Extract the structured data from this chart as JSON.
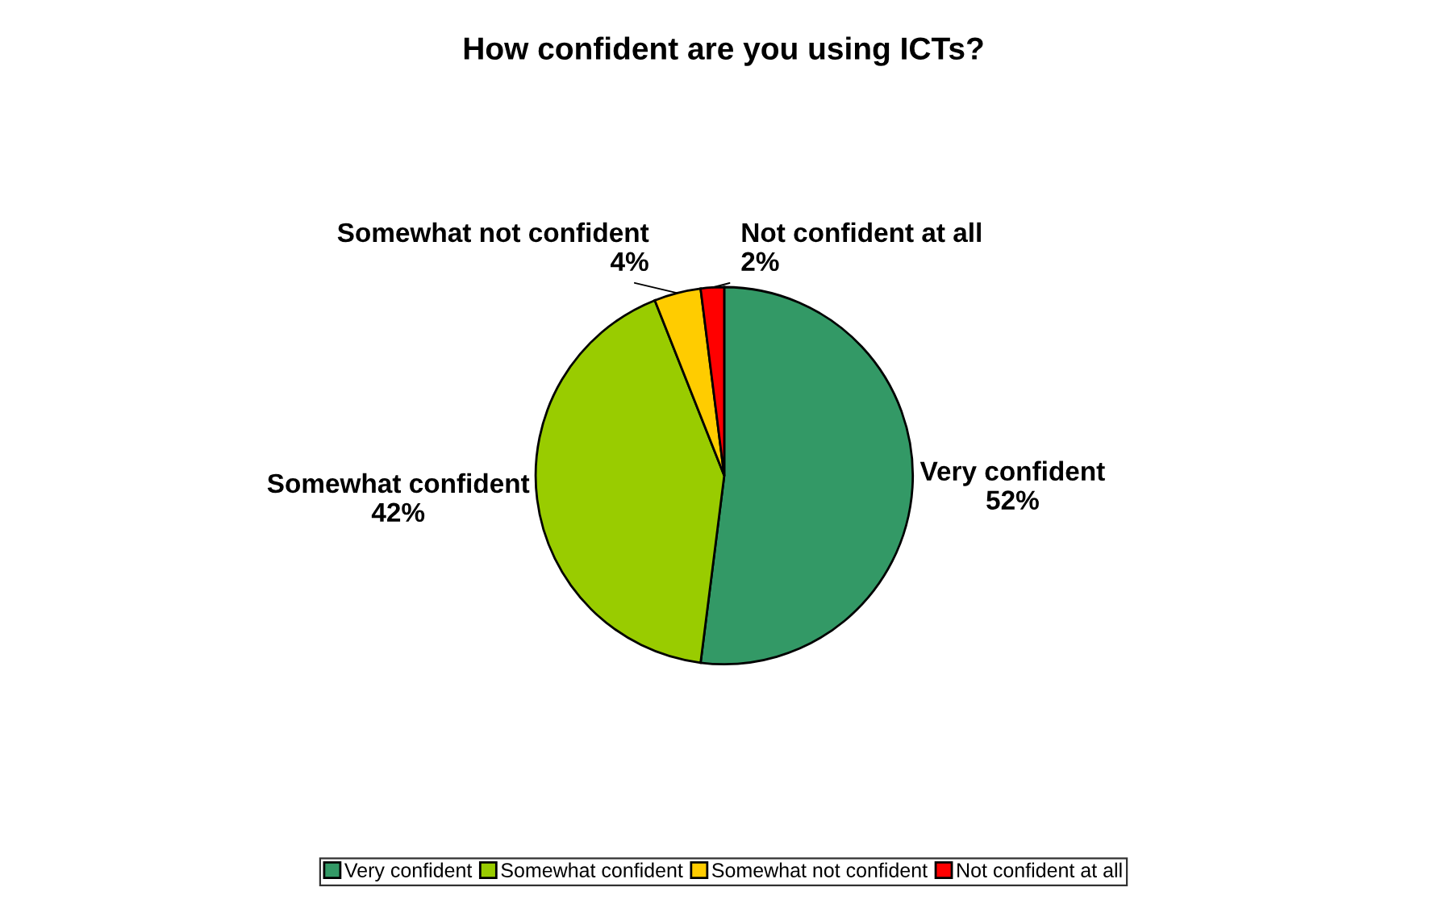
{
  "chart_data": {
    "type": "pie",
    "title": "How confident are you using ICTs?",
    "categories": [
      "Very confident",
      "Somewhat confident",
      "Somewhat not confident",
      "Not confident at all"
    ],
    "values": [
      52,
      42,
      4,
      2
    ],
    "value_labels": [
      "52%",
      "42%",
      "4%",
      "2%"
    ],
    "colors": [
      "#339966",
      "#99cc00",
      "#ffcc00",
      "#ff0000"
    ],
    "legend": "bottom"
  }
}
